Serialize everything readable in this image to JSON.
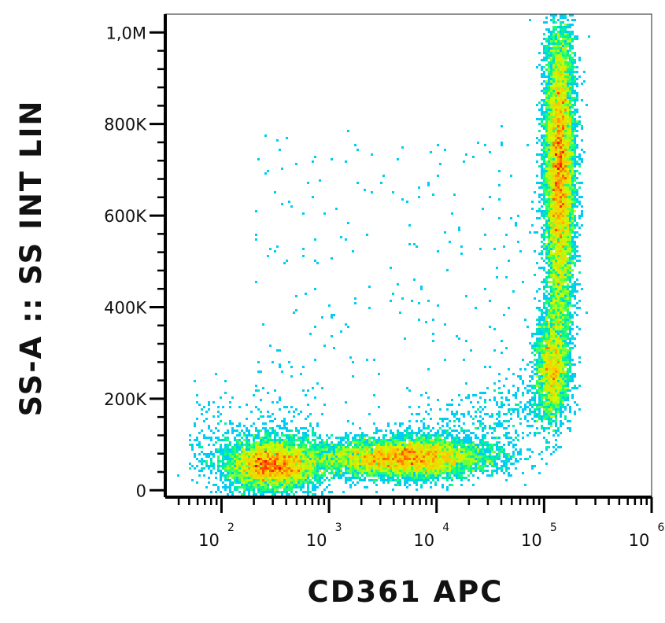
{
  "chart_data": {
    "type": "scatter",
    "title": "",
    "xlabel": "CD361 APC",
    "ylabel": "SS-A :: SS INT LIN",
    "x_scale": "log",
    "y_scale": "linear",
    "xlim": [
      30,
      1000000
    ],
    "ylim": [
      -15000,
      1040000
    ],
    "x_ticks": [
      {
        "value": 100,
        "base": "10",
        "exp": "2"
      },
      {
        "value": 1000,
        "base": "10",
        "exp": "3"
      },
      {
        "value": 10000,
        "base": "10",
        "exp": "4"
      },
      {
        "value": 100000,
        "base": "10",
        "exp": "5"
      },
      {
        "value": 1000000,
        "base": "10",
        "exp": "6"
      }
    ],
    "y_ticks": [
      {
        "value": 0,
        "label": "0"
      },
      {
        "value": 200000,
        "label": "200K"
      },
      {
        "value": 400000,
        "label": "400K"
      },
      {
        "value": 600000,
        "label": "600K"
      },
      {
        "value": 800000,
        "label": "800K"
      },
      {
        "value": 1000000,
        "label": "1,0M"
      }
    ],
    "grid": false,
    "legend": "none",
    "colormap": [
      "#0000ff",
      "#00c8ff",
      "#00ff80",
      "#c8ff00",
      "#ffc800",
      "#ff0000"
    ],
    "populations": [
      {
        "x_median": 300,
        "x_log_spread": 0.22,
        "y_center": 55000,
        "y_spread": 28000,
        "density_peak": "red"
      },
      {
        "x_median": 5000,
        "x_log_spread": 0.4,
        "y_center": 70000,
        "y_spread": 22000,
        "density_peak": "orange"
      },
      {
        "x_median": 140000,
        "x_log_spread": 0.07,
        "y_center": 700000,
        "y_spread": 150000,
        "density_peak": "red"
      },
      {
        "x_median": 120000,
        "x_log_spread": 0.08,
        "y_center": 270000,
        "y_spread": 60000,
        "density_peak": "yellow"
      }
    ]
  }
}
